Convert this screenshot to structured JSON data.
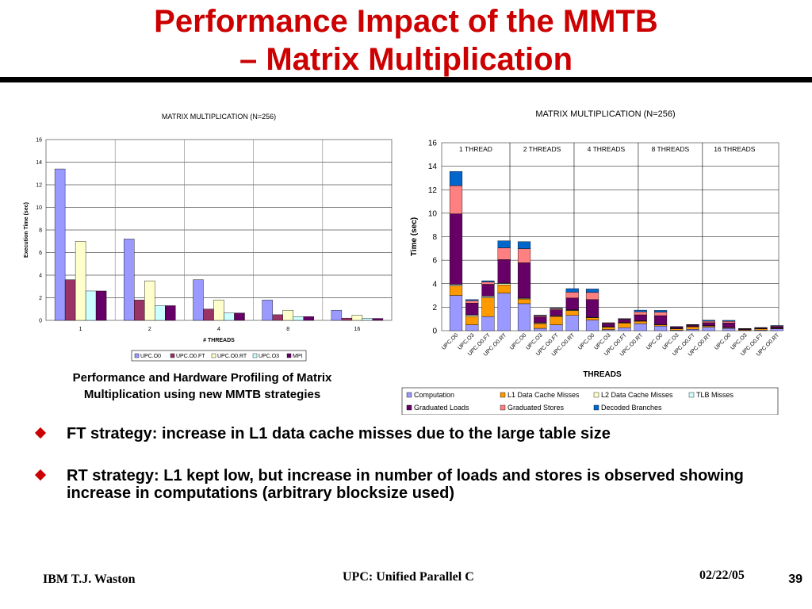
{
  "slide": {
    "title_line1": "Performance Impact of the MMTB",
    "title_line2": "– Matrix Multiplication",
    "caption_line1": "Performance and Hardware Profiling of Matrix",
    "caption_line2": "Multiplication using new MMTB strategies",
    "bullets": [
      "FT strategy: increase in L1 data cache misses due to the large table size",
      "RT strategy: L1 kept low, but increase in number of loads and stores is observed showing increase in computations (arbitrary blocksize used)"
    ],
    "footer_left": "IBM T.J. Waston",
    "footer_center": "UPC: Unified Parallel C",
    "footer_date": "02/22/05",
    "page_number": "39",
    "title_color": "#cc0000",
    "bullet_color": "#cc0000"
  },
  "chart_data": [
    {
      "type": "bar",
      "title": "MATRIX MULTIPLICATION (N=256)",
      "xlabel": "# THREADS",
      "ylabel": "Execution Time (sec)",
      "ylim": [
        0,
        16
      ],
      "yticks": [
        0,
        2,
        4,
        6,
        8,
        10,
        12,
        14,
        16
      ],
      "categories": [
        "1",
        "2",
        "4",
        "8",
        "16"
      ],
      "grid": true,
      "legend": "bottom",
      "series": [
        {
          "name": "UPC.O0",
          "color": "#9999ff",
          "values": [
            13.4,
            7.2,
            3.6,
            1.8,
            0.9
          ]
        },
        {
          "name": "UPC.O0.FT",
          "color": "#993366",
          "values": [
            3.6,
            1.8,
            1.0,
            0.5,
            0.2
          ]
        },
        {
          "name": "UPC.O0.RT",
          "color": "#ffffcc",
          "values": [
            7.0,
            3.5,
            1.8,
            0.9,
            0.45
          ]
        },
        {
          "name": "UPC.O3",
          "color": "#ccffff",
          "values": [
            2.6,
            1.3,
            0.65,
            0.33,
            0.17
          ]
        },
        {
          "name": "MPI",
          "color": "#660066",
          "values": [
            2.6,
            1.3,
            0.65,
            0.33,
            0.17
          ]
        }
      ]
    },
    {
      "type": "bar",
      "stacked": true,
      "title": "MATRIX MULTIPLICATION (N=256)",
      "xlabel": "THREADS",
      "ylabel": "Time (sec)",
      "ylim": [
        0,
        16
      ],
      "yticks": [
        0,
        2,
        4,
        6,
        8,
        10,
        12,
        14,
        16
      ],
      "grid": true,
      "legend": "bottom",
      "groups": [
        "1 THREAD",
        "2 THREADS",
        "4 THREADS",
        "8 THREADS",
        "16 THREADS"
      ],
      "categories": [
        "UPC.O0",
        "UPC.O3",
        "UPC.O0.FT",
        "UPC.O0.RT",
        "UPC.O0",
        "UPC.O3",
        "UPC.O0.FT",
        "UPC.O0.RT",
        "UPC.O0",
        "UPC.O3",
        "UPC.O0.FT",
        "UPC.O0.RT",
        "UPC.O0",
        "UPC.O3",
        "UPC.O0.FT",
        "UPC.O0.RT",
        "UPC.O0",
        "UPC.O3",
        "UPC.O0.FT",
        "UPC.O0.RT"
      ],
      "series": [
        {
          "name": "Computation",
          "color": "#9999ff",
          "values": [
            3.0,
            0.5,
            1.2,
            3.2,
            2.3,
            0.2,
            0.5,
            1.3,
            0.9,
            0.1,
            0.25,
            0.6,
            0.4,
            0.05,
            0.12,
            0.3,
            0.2,
            0.03,
            0.06,
            0.15
          ]
        },
        {
          "name": "L1 Data Cache Misses",
          "color": "#ff9900",
          "values": [
            0.8,
            0.7,
            1.6,
            0.7,
            0.4,
            0.4,
            0.7,
            0.4,
            0.2,
            0.2,
            0.4,
            0.2,
            0.1,
            0.1,
            0.2,
            0.1,
            0.05,
            0.05,
            0.1,
            0.05
          ]
        },
        {
          "name": "L2 Data Cache Misses",
          "color": "#ffffcc",
          "values": [
            0.1,
            0.1,
            0.1,
            0.1,
            0.05,
            0.05,
            0.05,
            0.05,
            0.03,
            0.03,
            0.03,
            0.03,
            0.02,
            0.02,
            0.02,
            0.02,
            0.01,
            0.01,
            0.01,
            0.01
          ]
        },
        {
          "name": "TLB Misses",
          "color": "#ccffff",
          "values": [
            0.05,
            0.05,
            0.05,
            0.05,
            0.03,
            0.03,
            0.03,
            0.03,
            0.02,
            0.02,
            0.02,
            0.02,
            0.01,
            0.01,
            0.01,
            0.01,
            0.01,
            0.01,
            0.01,
            0.01
          ]
        },
        {
          "name": "Graduated Loads",
          "color": "#660066",
          "values": [
            6.0,
            1.0,
            1.0,
            2.0,
            3.0,
            0.5,
            0.5,
            1.0,
            1.5,
            0.25,
            0.25,
            0.5,
            0.75,
            0.12,
            0.12,
            0.25,
            0.38,
            0.06,
            0.06,
            0.12
          ]
        },
        {
          "name": "Graduated Stores",
          "color": "#ff8080",
          "values": [
            2.4,
            0.2,
            0.2,
            1.0,
            1.2,
            0.1,
            0.1,
            0.5,
            0.6,
            0.05,
            0.05,
            0.25,
            0.3,
            0.03,
            0.03,
            0.13,
            0.15,
            0.02,
            0.02,
            0.06
          ]
        },
        {
          "name": "Decoded Branches",
          "color": "#0066cc",
          "values": [
            1.2,
            0.1,
            0.1,
            0.6,
            0.6,
            0.05,
            0.05,
            0.3,
            0.3,
            0.03,
            0.03,
            0.15,
            0.15,
            0.02,
            0.02,
            0.08,
            0.08,
            0.01,
            0.01,
            0.04
          ]
        }
      ]
    }
  ]
}
